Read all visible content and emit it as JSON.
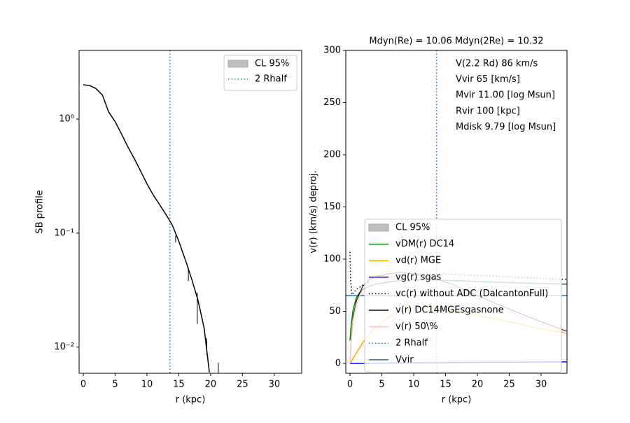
{
  "chart_data": [
    {
      "type": "line",
      "log_y": true,
      "xlabel": "r (kpc)",
      "ylabel": "SB profile",
      "xlim": [
        -0.66,
        34.3
      ],
      "xticks": [
        0,
        5,
        10,
        15,
        20,
        25,
        30
      ],
      "ylim": [
        0.0059,
        4.0
      ],
      "yticks": [
        {
          "value": 1,
          "label": "10⁰"
        },
        {
          "value": 0.1,
          "label": "10⁻¹"
        },
        {
          "value": 0.01,
          "label": "10⁻²"
        }
      ],
      "series": [
        {
          "color": "#000000",
          "x": [
            0,
            1,
            2,
            3,
            4,
            5,
            6,
            7,
            8,
            9,
            10,
            11,
            12,
            13,
            14,
            15,
            16,
            17,
            18,
            19,
            19.8
          ],
          "values": [
            2.0,
            1.97,
            1.85,
            1.62,
            1.15,
            0.95,
            0.74,
            0.57,
            0.45,
            0.35,
            0.27,
            0.215,
            0.177,
            0.145,
            0.117,
            0.085,
            0.059,
            0.04,
            0.026,
            0.0145,
            0.006
          ]
        }
      ],
      "error_bars": {
        "color": "#000000",
        "x": [
          14.5,
          16.5,
          17.9,
          19.4,
          21.2
        ],
        "low": [
          0.083,
          0.038,
          0.016,
          0.0085,
          0.0055
        ],
        "high": [
          0.095,
          0.05,
          0.03,
          0.012,
          0.0073
        ]
      },
      "band": {
        "name": "CL 95%",
        "color": "#bfbfbf"
      },
      "vline": {
        "name": "2 Rhalf",
        "x": 13.6,
        "color": "#1f77b4"
      },
      "legend": "upper right"
    },
    {
      "type": "line",
      "log_y": false,
      "title": "Mdyn(Re) = 10.06  Mdyn(2Re) = 10.32",
      "xlabel": "r (kpc)",
      "ylabel": "v(r) (km/s) deproj.",
      "xlim": [
        -0.66,
        34.07
      ],
      "xticks": [
        0,
        5,
        10,
        15,
        20,
        25,
        30
      ],
      "ylim": [
        -9.4,
        300
      ],
      "yticks": [
        0,
        50,
        100,
        150,
        200,
        250,
        300
      ],
      "annotations": [
        "V(2.2 Rd) 86 km/s",
        "Vvir 65 [km/s]",
        "Mvir 11.00 [log Msun]",
        "Rvir 100 [kpc]",
        "Mdisk 9.79 [log Msun]"
      ],
      "band": {
        "name": "CL 95%",
        "color": "#bfbfbf"
      },
      "series": [
        {
          "name": "vDM(r) DC14",
          "color": "#008000",
          "style": "solid",
          "x": [
            0,
            0.2,
            0.5,
            1,
            1.5,
            2,
            3,
            4,
            6,
            8,
            10,
            13,
            16,
            20,
            25,
            30,
            34
          ],
          "values": [
            22,
            38,
            52,
            63,
            68,
            71,
            74,
            76,
            78,
            79.5,
            80,
            80,
            79.5,
            78.5,
            77.5,
            76.5,
            76
          ]
        },
        {
          "name": "vd(r) MGE",
          "color": "#ffa500",
          "style": "solid",
          "x": [
            0,
            0.5,
            1,
            2,
            3,
            4,
            6,
            8,
            10,
            12,
            15,
            20,
            25,
            30,
            34
          ],
          "values": [
            0,
            5,
            10,
            20,
            28,
            35,
            44,
            50,
            53,
            53.5,
            52,
            46,
            40,
            33,
            29
          ]
        },
        {
          "name": "vg(r) sgas",
          "color": "#0000ff",
          "style": "solid",
          "x": [
            0,
            5,
            10,
            15,
            20,
            25,
            30,
            34
          ],
          "values": [
            0,
            0.3,
            0.6,
            0.8,
            1,
            1.2,
            1.4,
            1.5
          ]
        },
        {
          "name": "vc(r) without ADC (DalcantonFull)",
          "color": "#000000",
          "style": "dotted",
          "x": [
            0,
            0.1,
            0.3,
            0.6,
            1,
            1.5,
            2,
            3,
            5,
            8,
            10,
            13,
            16,
            20,
            25,
            30,
            34
          ],
          "values": [
            107,
            80,
            66,
            68,
            71,
            73,
            75,
            78,
            82,
            85,
            86,
            86,
            85.5,
            84.5,
            83,
            81.5,
            80.5
          ]
        },
        {
          "name": "v(r) DC14MGEsgasnone",
          "color": "#000000",
          "style": "thin",
          "x": [
            0,
            0.2,
            0.5,
            1,
            2,
            3,
            4,
            6,
            8,
            10,
            13,
            16,
            20,
            25,
            30,
            34
          ],
          "values": [
            0,
            25,
            45,
            60,
            74,
            80,
            83,
            86,
            87,
            86,
            82,
            76,
            65,
            52,
            40,
            31
          ]
        },
        {
          "name": "v(r) 50\\%",
          "color": "#ffc0cb",
          "style": "solid",
          "x": [
            0,
            0.2,
            0.5,
            1,
            2,
            3,
            4,
            6,
            8,
            10,
            13,
            16,
            20,
            25,
            30,
            34
          ],
          "values": [
            0,
            22,
            42,
            57,
            71,
            77,
            80,
            83,
            84,
            83,
            79,
            73,
            62,
            50,
            38,
            29
          ]
        }
      ],
      "vline": {
        "name": "2 Rhalf",
        "x": 13.6,
        "color": "#1f77b4"
      },
      "hline": {
        "name": "Vvir",
        "y": 65,
        "color": "#1f77b4"
      },
      "legend": "lower center"
    }
  ]
}
